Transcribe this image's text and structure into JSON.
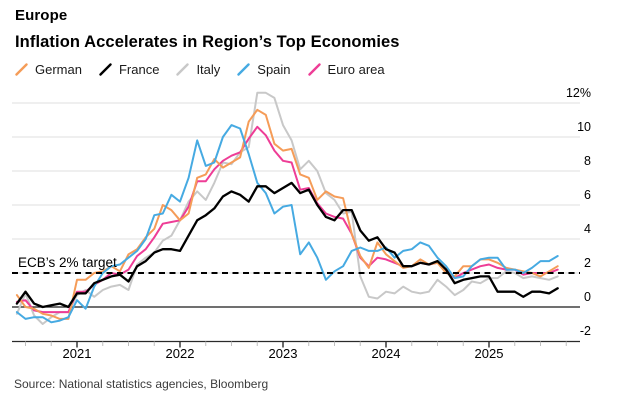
{
  "header": {
    "kicker": "Europe",
    "title": "Inflation Accelerates in Region’s Top Economies"
  },
  "annotation": {
    "ecb_target_label": "ECB’s 2% target",
    "ecb_target_value": 2
  },
  "source": "Source: National statistics agencies, Bloomberg",
  "colors": {
    "germany": "#F59C58",
    "france": "#000000",
    "italy": "#C8C8C8",
    "spain": "#46AAE2",
    "euro_area": "#EE3D96",
    "gridline": "#DFDFDF",
    "zero_line": "#1a1a1a",
    "axis": "#2a2a2a",
    "minor_tick": "#bfbfbf",
    "target_dash": "#000000"
  },
  "chart_data": {
    "type": "line",
    "title": "Inflation Accelerates in Region’s Top Economies",
    "unit": "% year-over-year",
    "frequency": "monthly",
    "x_start": "2020-06",
    "x_end": "2025-09",
    "ylim": [
      -2,
      12
    ],
    "grid": "horizontal",
    "legend_position": "top-left",
    "y_ticks": [
      {
        "v": 12,
        "label": "12%"
      },
      {
        "v": 10,
        "label": "10"
      },
      {
        "v": 8,
        "label": "8"
      },
      {
        "v": 6,
        "label": "6"
      },
      {
        "v": 4,
        "label": "4"
      },
      {
        "v": 2,
        "label": "2"
      },
      {
        "v": 0,
        "label": "0"
      },
      {
        "v": -2,
        "label": "-2"
      }
    ],
    "x_ticks": [
      {
        "label": "2021"
      },
      {
        "label": "2022"
      },
      {
        "label": "2023"
      },
      {
        "label": "2024"
      },
      {
        "label": "2025"
      }
    ],
    "target_line": {
      "value": 2,
      "label": "ECB’s 2% target"
    },
    "series": [
      {
        "name": "Italy",
        "key": "italy",
        "color": "#C8C8C8",
        "values": [
          -0.4,
          0.8,
          -0.5,
          -1.0,
          -0.6,
          -0.3,
          -0.3,
          0.7,
          1.0,
          0.6,
          1.0,
          1.2,
          1.3,
          1.0,
          2.5,
          2.9,
          3.2,
          3.9,
          4.2,
          5.1,
          6.2,
          6.8,
          6.3,
          7.3,
          8.5,
          8.4,
          9.1,
          9.4,
          12.6,
          12.6,
          12.3,
          10.7,
          9.8,
          8.1,
          8.6,
          8.0,
          6.7,
          6.3,
          5.5,
          5.6,
          1.8,
          0.6,
          0.5,
          0.9,
          0.8,
          1.2,
          0.9,
          0.8,
          0.9,
          1.6,
          1.2,
          0.7,
          1.0,
          1.5,
          1.4,
          1.7,
          1.7,
          2.1,
          2.0,
          1.7,
          1.8,
          1.7,
          1.6,
          1.8
        ]
      },
      {
        "name": "Euro area",
        "key": "euro-area",
        "color": "#EE3D96",
        "values": [
          0.3,
          0.4,
          -0.2,
          -0.3,
          -0.3,
          -0.3,
          -0.3,
          0.9,
          0.9,
          1.3,
          1.6,
          2.0,
          1.9,
          2.2,
          3.0,
          3.4,
          4.1,
          4.9,
          5.0,
          5.1,
          5.9,
          7.4,
          7.4,
          8.1,
          8.6,
          8.9,
          9.1,
          9.9,
          10.6,
          10.1,
          9.2,
          8.6,
          8.5,
          6.9,
          7.0,
          6.1,
          5.5,
          5.3,
          5.2,
          4.3,
          2.9,
          2.4,
          2.9,
          2.8,
          2.6,
          2.4,
          2.4,
          2.6,
          2.5,
          2.6,
          2.2,
          1.7,
          2.0,
          2.2,
          2.4,
          2.5,
          2.3,
          2.2,
          2.2,
          1.9,
          2.0,
          2.0,
          2.0,
          2.2
        ]
      },
      {
        "name": "German",
        "key": "german",
        "color": "#F59C58",
        "values": [
          0.7,
          0.0,
          -0.1,
          -0.4,
          -0.5,
          -0.7,
          -0.7,
          1.6,
          1.6,
          2.0,
          2.1,
          2.4,
          2.1,
          3.1,
          3.4,
          4.1,
          4.6,
          6.0,
          5.7,
          5.1,
          5.5,
          7.6,
          7.8,
          8.7,
          8.2,
          8.5,
          8.8,
          10.9,
          11.6,
          11.3,
          9.6,
          9.2,
          9.3,
          7.8,
          7.6,
          6.3,
          6.8,
          6.5,
          6.4,
          4.3,
          3.0,
          2.3,
          3.8,
          3.1,
          2.7,
          2.3,
          2.4,
          2.8,
          2.5,
          2.6,
          2.0,
          1.8,
          2.4,
          2.4,
          2.8,
          2.8,
          2.6,
          2.3,
          2.2,
          2.1,
          2.0,
          1.8,
          2.1,
          2.4
        ]
      },
      {
        "name": "Spain",
        "key": "spain",
        "color": "#46AAE2",
        "values": [
          -0.3,
          -0.7,
          -0.6,
          -0.6,
          -0.9,
          -0.8,
          -0.6,
          0.4,
          -0.1,
          1.2,
          2.0,
          2.4,
          2.5,
          2.9,
          3.3,
          4.0,
          5.4,
          5.5,
          6.6,
          6.2,
          7.6,
          9.8,
          8.3,
          8.5,
          10.0,
          10.7,
          10.5,
          9.0,
          7.3,
          6.7,
          5.5,
          5.9,
          6.0,
          3.1,
          3.8,
          2.9,
          1.6,
          2.1,
          2.4,
          3.3,
          3.5,
          3.3,
          3.3,
          3.5,
          2.9,
          3.3,
          3.4,
          3.8,
          3.6,
          2.9,
          2.4,
          1.7,
          1.8,
          2.4,
          2.8,
          2.9,
          2.9,
          2.2,
          2.2,
          2.0,
          2.3,
          2.7,
          2.7,
          3.0
        ]
      },
      {
        "name": "France",
        "key": "france",
        "color": "#000000",
        "values": [
          0.2,
          0.9,
          0.2,
          0.0,
          0.1,
          0.2,
          0.0,
          0.8,
          0.8,
          1.4,
          1.6,
          1.8,
          1.9,
          1.5,
          2.4,
          2.7,
          3.2,
          3.4,
          3.4,
          3.3,
          4.2,
          5.1,
          5.4,
          5.8,
          6.5,
          6.8,
          6.6,
          6.2,
          7.1,
          7.1,
          6.7,
          7.0,
          7.3,
          6.7,
          6.9,
          6.0,
          5.3,
          5.1,
          5.7,
          5.7,
          4.5,
          3.9,
          4.1,
          3.4,
          3.2,
          2.4,
          2.4,
          2.6,
          2.5,
          2.7,
          2.2,
          1.4,
          1.6,
          1.7,
          1.8,
          1.8,
          0.9,
          0.9,
          0.9,
          0.6,
          0.9,
          0.9,
          0.8,
          1.1
        ]
      }
    ],
    "legend_order": [
      "German",
      "France",
      "Italy",
      "Spain",
      "Euro area"
    ]
  }
}
